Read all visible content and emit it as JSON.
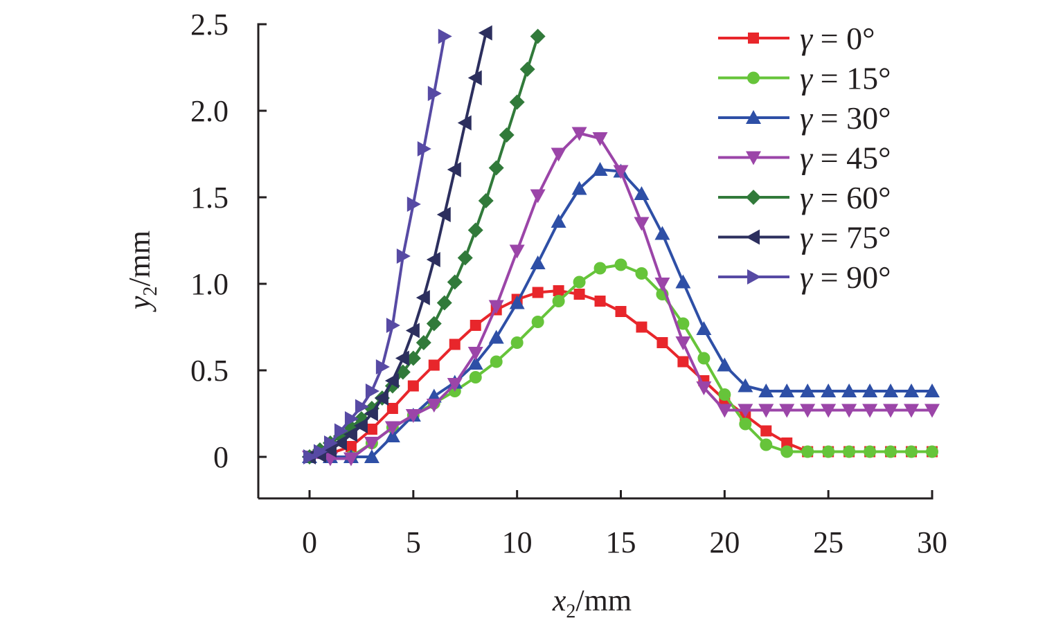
{
  "chart_data": {
    "type": "line",
    "title": "",
    "xlabel": "x2/mm",
    "ylabel": "y2/mm",
    "xlabel_parts": {
      "var": "x",
      "sub": "2",
      "unit": "/mm"
    },
    "ylabel_parts": {
      "var": "y",
      "sub": "2",
      "unit": "/mm"
    },
    "xlim": [
      -2.5,
      30
    ],
    "ylim": [
      -0.25,
      2.5
    ],
    "x_ticks": [
      0,
      5,
      10,
      15,
      20,
      25,
      30
    ],
    "x_tick_labels": [
      "0",
      "5",
      "10",
      "15",
      "20",
      "25",
      "30"
    ],
    "y_ticks": [
      0,
      0.5,
      1.0,
      1.5,
      2.0,
      2.5
    ],
    "y_tick_labels": [
      "0",
      "0.5",
      "1.0",
      "1.5",
      "2.0",
      "2.5"
    ],
    "grid": false,
    "legend_position": "top-right",
    "series": [
      {
        "name": "γ = 0°",
        "marker": "square",
        "color": "#e8262b",
        "x": [
          0,
          1,
          2,
          3,
          4,
          5,
          6,
          7,
          8,
          9,
          10,
          11,
          12,
          13,
          14,
          15,
          16,
          17,
          18,
          19,
          20,
          21,
          22,
          23,
          24,
          25,
          26,
          27,
          28,
          29,
          30
        ],
        "y": [
          0,
          0.02,
          0.06,
          0.16,
          0.28,
          0.41,
          0.53,
          0.65,
          0.76,
          0.85,
          0.91,
          0.95,
          0.96,
          0.94,
          0.9,
          0.84,
          0.75,
          0.66,
          0.55,
          0.44,
          0.33,
          0.24,
          0.15,
          0.08,
          0.03,
          0.03,
          0.03,
          0.03,
          0.03,
          0.03,
          0.03
        ]
      },
      {
        "name": "γ = 15°",
        "marker": "circle",
        "color": "#66c43a",
        "x": [
          0,
          1,
          2,
          3,
          4,
          5,
          6,
          7,
          8,
          9,
          10,
          11,
          12,
          13,
          14,
          15,
          16,
          17,
          18,
          19,
          20,
          21,
          22,
          23,
          24,
          25,
          26,
          27,
          28,
          29,
          30
        ],
        "y": [
          0,
          0,
          0,
          0.08,
          0.17,
          0.24,
          0.31,
          0.38,
          0.46,
          0.55,
          0.66,
          0.78,
          0.9,
          1.01,
          1.09,
          1.11,
          1.06,
          0.94,
          0.77,
          0.57,
          0.36,
          0.19,
          0.07,
          0.03,
          0.03,
          0.03,
          0.03,
          0.03,
          0.03,
          0.03,
          0.03
        ]
      },
      {
        "name": "γ = 30°",
        "marker": "triangle-up",
        "color": "#2e4fa6",
        "x": [
          0,
          1,
          2,
          3,
          4,
          5,
          6,
          7,
          8,
          9,
          10,
          11,
          12,
          13,
          14,
          15,
          16,
          17,
          18,
          19,
          20,
          21,
          22,
          23,
          24,
          25,
          26,
          27,
          28,
          29,
          30
        ],
        "y": [
          0,
          0,
          0,
          0,
          0.12,
          0.24,
          0.35,
          0.43,
          0.54,
          0.69,
          0.89,
          1.12,
          1.36,
          1.55,
          1.66,
          1.65,
          1.52,
          1.29,
          1.01,
          0.74,
          0.53,
          0.41,
          0.38,
          0.38,
          0.38,
          0.38,
          0.38,
          0.38,
          0.38,
          0.38,
          0.38
        ]
      },
      {
        "name": "γ = 45°",
        "marker": "triangle-down",
        "color": "#9b45a8",
        "x": [
          0,
          1,
          2,
          3,
          4,
          5,
          6,
          7,
          8,
          9,
          10,
          11,
          12,
          13,
          14,
          15,
          16,
          17,
          18,
          19,
          20,
          21,
          22,
          23,
          24,
          25,
          26,
          27,
          28,
          29,
          30
        ],
        "y": [
          0,
          -0.01,
          -0.01,
          0.08,
          0.17,
          0.24,
          0.3,
          0.42,
          0.6,
          0.87,
          1.19,
          1.51,
          1.75,
          1.87,
          1.84,
          1.65,
          1.35,
          1.0,
          0.66,
          0.4,
          0.27,
          0.27,
          0.27,
          0.27,
          0.27,
          0.27,
          0.27,
          0.27,
          0.27,
          0.27,
          0.27
        ]
      },
      {
        "name": "γ = 60°",
        "marker": "diamond",
        "color": "#317a3a",
        "x": [
          0,
          0.5,
          1,
          1.5,
          2,
          2.5,
          3,
          3.5,
          4,
          4.5,
          5,
          5.5,
          6,
          6.5,
          7,
          7.5,
          8,
          8.5,
          9,
          9.5,
          10,
          10.5,
          11
        ],
        "y": [
          0,
          0.04,
          0.08,
          0.12,
          0.17,
          0.22,
          0.28,
          0.34,
          0.41,
          0.49,
          0.57,
          0.66,
          0.77,
          0.89,
          1.01,
          1.15,
          1.31,
          1.48,
          1.67,
          1.86,
          2.05,
          2.24,
          2.43
        ]
      },
      {
        "name": "γ = 75°",
        "marker": "triangle-left",
        "color": "#2c2f5e",
        "x": [
          0,
          0.5,
          1,
          1.5,
          2,
          2.5,
          3,
          3.5,
          4,
          4.5,
          5,
          5.5,
          6,
          6.5,
          7,
          7.5,
          8,
          8.5
        ],
        "y": [
          0,
          0.01,
          0.04,
          0.08,
          0.13,
          0.18,
          0.25,
          0.34,
          0.44,
          0.57,
          0.73,
          0.92,
          1.14,
          1.4,
          1.66,
          1.93,
          2.19,
          2.45
        ]
      },
      {
        "name": "γ = 90°",
        "marker": "triangle-right",
        "color": "#574aa4",
        "x": [
          0,
          0.5,
          1,
          1.5,
          2,
          2.5,
          3,
          3.5,
          4,
          4.5,
          5,
          5.5,
          6,
          6.5
        ],
        "y": [
          0,
          0.03,
          0.08,
          0.15,
          0.22,
          0.29,
          0.38,
          0.52,
          0.76,
          1.16,
          1.46,
          1.78,
          2.1,
          2.43
        ]
      }
    ]
  }
}
